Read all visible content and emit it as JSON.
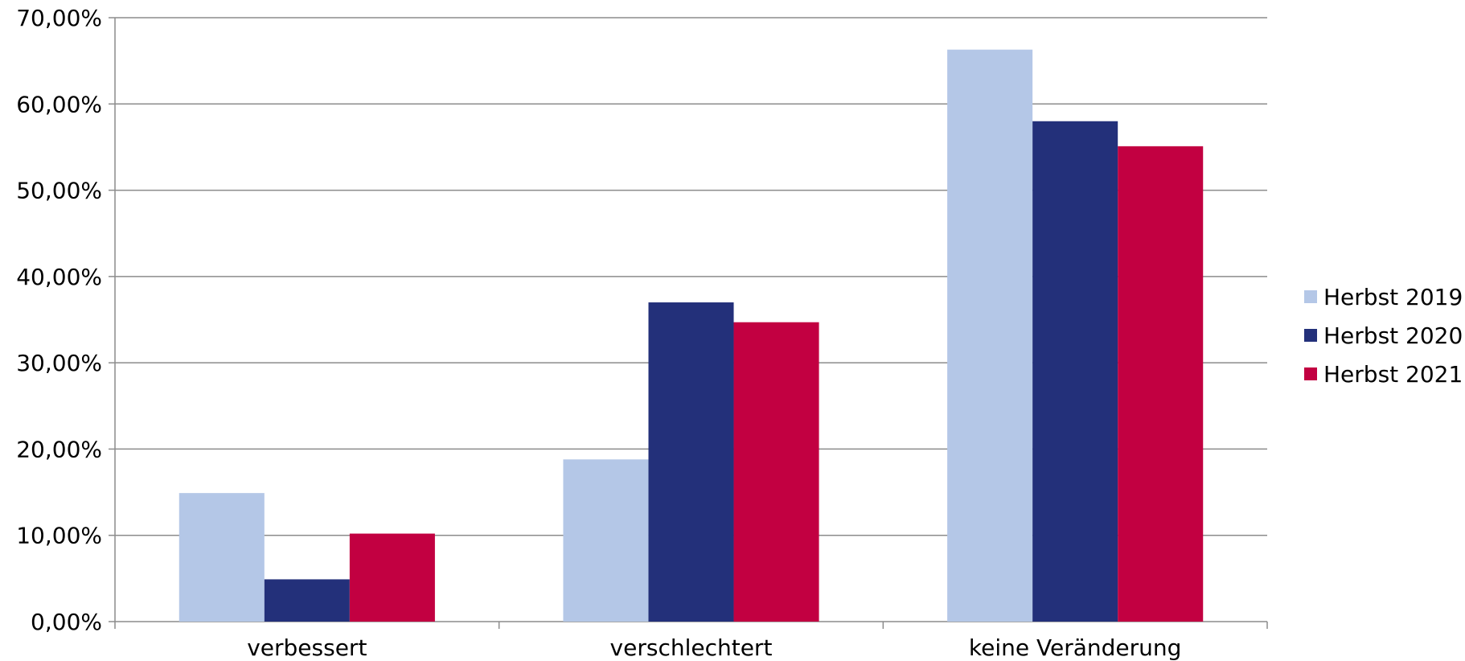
{
  "chart_data": {
    "type": "bar",
    "categories": [
      "verbessert",
      "verschlechtert",
      "keine Veränderung"
    ],
    "series": [
      {
        "name": "Herbst 2019",
        "color": "#b4c7e7",
        "values": [
          14.9,
          18.8,
          66.3
        ]
      },
      {
        "name": "Herbst 2020",
        "color": "#23307a",
        "values": [
          4.9,
          37.0,
          58.0
        ]
      },
      {
        "name": "Herbst 2021",
        "color": "#c20041",
        "values": [
          10.2,
          34.7,
          55.1
        ]
      }
    ],
    "ylim": [
      0,
      70
    ],
    "ytick_labels": [
      "0,00%",
      "10,00%",
      "20,00%",
      "30,00%",
      "40,00%",
      "50,00%",
      "60,00%",
      "70,00%"
    ],
    "grid": true,
    "legend_position": "right",
    "title": "",
    "xlabel": "",
    "ylabel": ""
  }
}
